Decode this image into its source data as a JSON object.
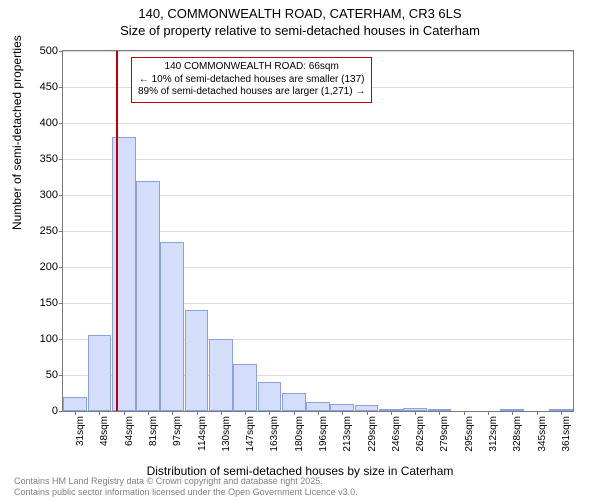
{
  "title_line1": "140, COMMONWEALTH ROAD, CATERHAM, CR3 6LS",
  "title_line2": "Size of property relative to semi-detached houses in Caterham",
  "ylabel": "Number of semi-detached properties",
  "xlabel": "Distribution of semi-detached houses by size in Caterham",
  "footer_line1": "Contains HM Land Registry data © Crown copyright and database right 2025.",
  "footer_line2": "Contains public sector information licensed under the Open Government Licence v3.0.",
  "chart": {
    "type": "histogram",
    "ylim": [
      0,
      500
    ],
    "ytick_step": 50,
    "bar_fill": "#d4defb",
    "bar_stroke": "#8aa2e3",
    "grid_color": "#dcdcdc",
    "axis_color": "#7a7a7a",
    "background": "#ffffff",
    "marker_color": "#c00000",
    "label_fontsize": 12,
    "tick_fontsize": 10,
    "x_categories": [
      "31sqm",
      "48sqm",
      "64sqm",
      "81sqm",
      "97sqm",
      "114sqm",
      "130sqm",
      "147sqm",
      "163sqm",
      "180sqm",
      "196sqm",
      "213sqm",
      "229sqm",
      "246sqm",
      "262sqm",
      "279sqm",
      "295sqm",
      "312sqm",
      "328sqm",
      "345sqm",
      "361sqm"
    ],
    "values": [
      20,
      105,
      380,
      320,
      235,
      140,
      100,
      65,
      40,
      25,
      12,
      10,
      8,
      2,
      4,
      1,
      0,
      0,
      1,
      0,
      1
    ],
    "marker_position": 2,
    "annotation": {
      "line1": "140 COMMONWEALTH ROAD: 66sqm",
      "line2": "← 10% of semi-detached houses are smaller (137)",
      "line3": "89% of semi-detached houses are larger (1,271) →"
    }
  }
}
